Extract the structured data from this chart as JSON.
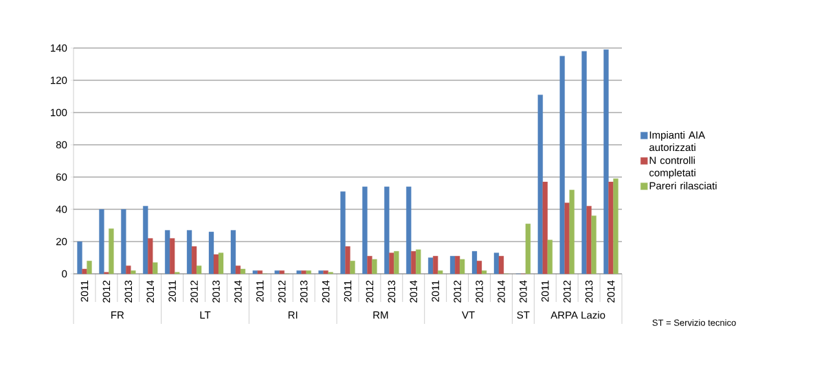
{
  "chart_data": {
    "type": "bar",
    "categories": [
      "2011",
      "2012",
      "2013",
      "2014",
      "2011",
      "2012",
      "2013",
      "2014",
      "2011",
      "2012",
      "2013",
      "2014",
      "2011",
      "2012",
      "2013",
      "2014",
      "2011",
      "2012",
      "2013",
      "2014",
      "2014",
      "2011",
      "2012",
      "2013",
      "2014"
    ],
    "series": [
      {
        "name": "Impianti AIA autorizzati",
        "color": "#4f81bd",
        "values": [
          20,
          40,
          40,
          42,
          27,
          27,
          26,
          27,
          2,
          2,
          2,
          2,
          51,
          54,
          54,
          54,
          10,
          11,
          14,
          13,
          0,
          111,
          135,
          138,
          139
        ]
      },
      {
        "name": "N controlli completati",
        "color": "#c0504d",
        "values": [
          3,
          1,
          5,
          22,
          22,
          17,
          12,
          5,
          2,
          2,
          2,
          2,
          17,
          11,
          13,
          14,
          11,
          11,
          8,
          11,
          0,
          57,
          44,
          42,
          57
        ]
      },
      {
        "name": "Pareri rilasciati",
        "color": "#9bbb59",
        "values": [
          8,
          28,
          2,
          7,
          1,
          5,
          13,
          3,
          0,
          0,
          2,
          1,
          8,
          9,
          14,
          15,
          2,
          9,
          2,
          0,
          31,
          21,
          52,
          36,
          59
        ]
      }
    ],
    "ylim": [
      0,
      140
    ],
    "yticks": [
      0,
      20,
      40,
      60,
      80,
      100,
      120,
      140
    ],
    "grid": "y",
    "legend": "right",
    "annotations": [
      "FR",
      "LT",
      "RI",
      "RM",
      "VT",
      "ST",
      "ARPA Lazio",
      "ST = Servizio tecnico"
    ]
  }
}
